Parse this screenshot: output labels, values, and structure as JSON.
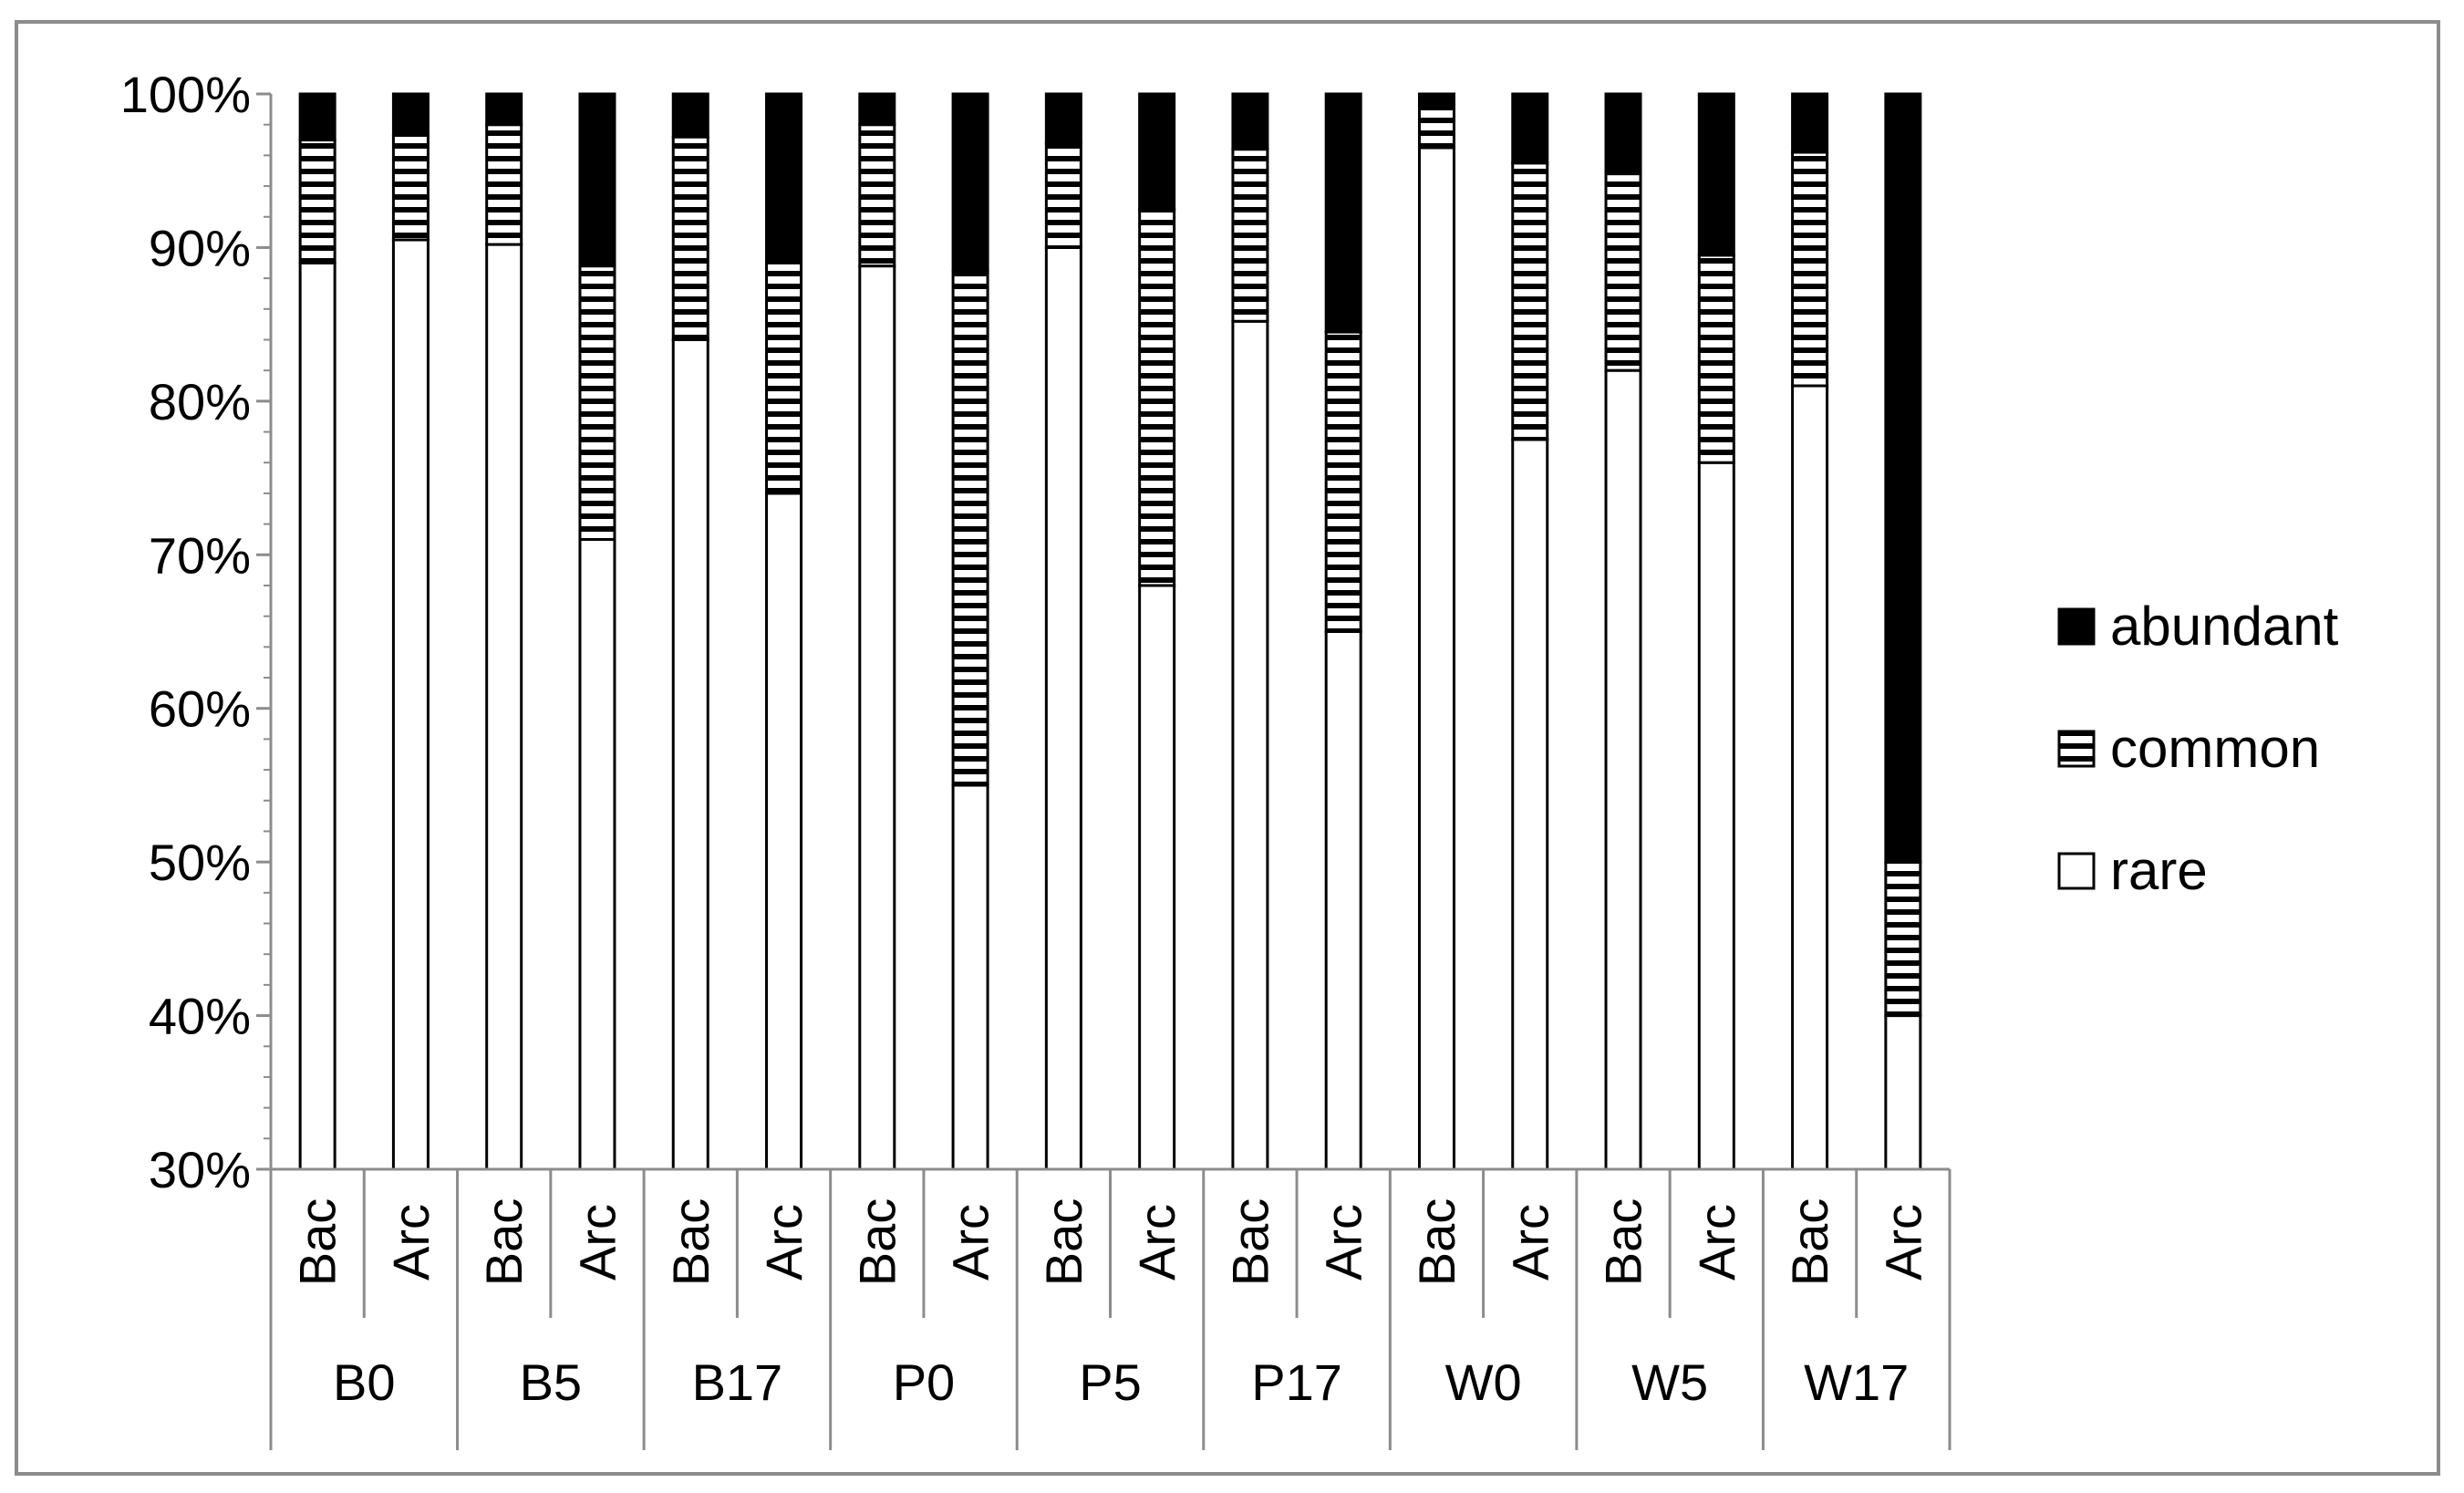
{
  "chart_data": {
    "type": "bar",
    "stacked": "percent",
    "title": "",
    "xlabel": "",
    "ylabel": "",
    "ylim": [
      30,
      100
    ],
    "y_ticks": [
      "30%",
      "40%",
      "50%",
      "60%",
      "70%",
      "80%",
      "90%",
      "100%"
    ],
    "groups": [
      "B0",
      "B5",
      "B17",
      "P0",
      "P5",
      "P17",
      "W0",
      "W5",
      "W17"
    ],
    "subcategories": [
      "Bac",
      "Arc"
    ],
    "categories": [
      "B0 Bac",
      "B0 Arc",
      "B5 Bac",
      "B5 Arc",
      "B17 Bac",
      "B17 Arc",
      "P0 Bac",
      "P0 Arc",
      "P5 Bac",
      "P5 Arc",
      "P17 Bac",
      "P17 Arc",
      "W0 Bac",
      "W0 Arc",
      "W5 Bac",
      "W5 Arc",
      "W17 Bac",
      "W17 Arc"
    ],
    "series": [
      {
        "name": "rare",
        "color": "#ffffff",
        "pattern": "none",
        "values": [
          89,
          90.5,
          90.2,
          71,
          84,
          74,
          88.8,
          55,
          90,
          68,
          85.2,
          65,
          96.5,
          77.5,
          82,
          76,
          81,
          40
        ]
      },
      {
        "name": "common",
        "color": "#ffffff",
        "pattern": "horizontal-stripes",
        "values": [
          8,
          6.8,
          7.8,
          17.8,
          13.2,
          15,
          9.2,
          33.5,
          6.8,
          24.5,
          11.2,
          19.5,
          2.8,
          18,
          12.8,
          13.5,
          15.2,
          10
        ]
      },
      {
        "name": "abundant",
        "color": "#000000",
        "pattern": "none",
        "values": [
          3,
          2.7,
          2,
          11.2,
          2.8,
          11,
          2,
          11.5,
          3.2,
          7.5,
          3.6,
          15.5,
          0.7,
          4.5,
          5.2,
          10.5,
          3.8,
          50
        ]
      }
    ],
    "legend": {
      "placement": "right",
      "order": [
        "abundant",
        "common",
        "rare"
      ]
    },
    "grid": false
  }
}
